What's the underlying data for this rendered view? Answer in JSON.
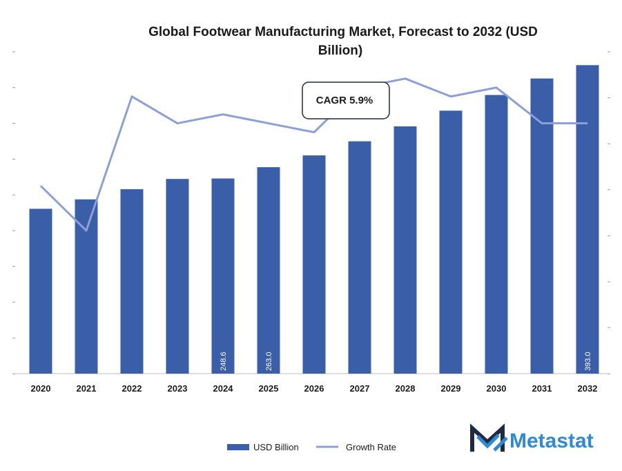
{
  "chart_data": {
    "type": "bar",
    "title_line1": "Global Footwear Manufacturing Market, Forecast to 2032 (USD",
    "title_line2": "Billion)",
    "categories": [
      "2020",
      "2021",
      "2022",
      "2023",
      "2024",
      "2025",
      "2026",
      "2027",
      "2028",
      "2029",
      "2030",
      "2031",
      "2032"
    ],
    "series": [
      {
        "name": "USD Billion",
        "kind": "bar",
        "color": "#3a5fa8",
        "values": [
          210.0,
          222.0,
          235.0,
          248.0,
          248.6,
          263.0,
          278.0,
          296.0,
          315.0,
          335.0,
          355.0,
          376.0,
          393.0
        ]
      },
      {
        "name": "Growth Rate",
        "kind": "line",
        "color": "#8c9fd8",
        "values": [
          5.1,
          4.6,
          6.1,
          5.8,
          5.9,
          5.8,
          5.7,
          6.2,
          6.3,
          6.1,
          6.2,
          5.8,
          5.8
        ]
      }
    ],
    "data_labels": [
      {
        "index": 4,
        "text": "248.6"
      },
      {
        "index": 5,
        "text": "263.0"
      },
      {
        "index": 12,
        "text": "393.0"
      }
    ],
    "annotation": "CAGR 5.9%",
    "bar_ylim": [
      0,
      410
    ],
    "line_ylim": [
      3.0,
      6.6
    ],
    "grid": false,
    "legend_position": "bottom"
  },
  "brand": {
    "name": "Metastat",
    "icon": "metastat-m-logo-icon",
    "dark_color": "#1f2a44",
    "accent_color": "#2f8ad6"
  }
}
